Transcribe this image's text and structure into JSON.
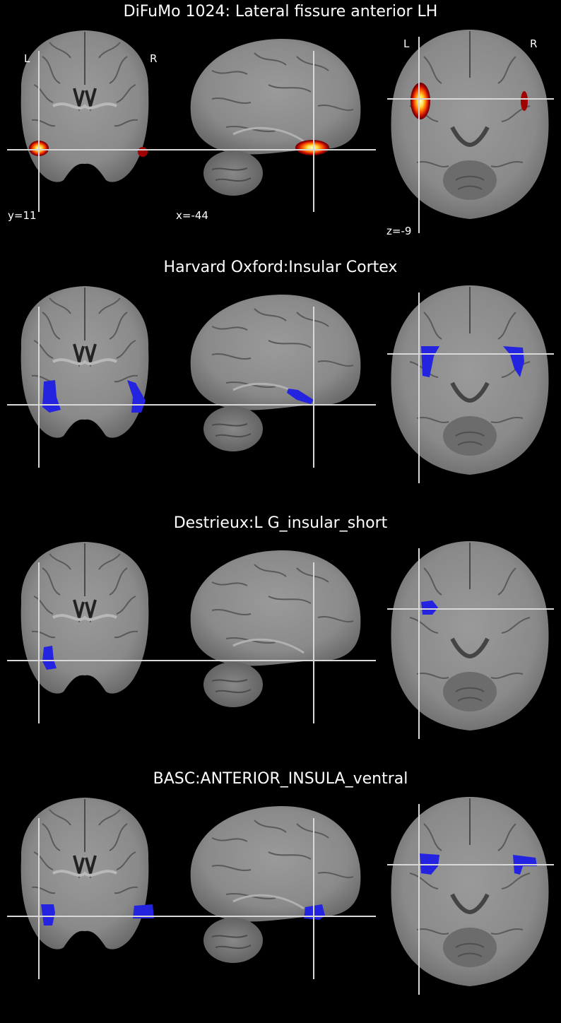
{
  "panels": [
    {
      "title": "DiFuMo 1024: Lateral fissure anterior LH",
      "overlay": "hot",
      "orientation_labels": {
        "left": "L",
        "right": "R"
      },
      "coords": {
        "coronal": "y=11",
        "sagittal": "x=-44",
        "axial": "z=-9"
      },
      "highlight_color": "#f5f5a0"
    },
    {
      "title": "Harvard Oxford:Insular Cortex",
      "overlay": "blue",
      "highlight_color": "#2222dd"
    },
    {
      "title": "Destrieux:L G_insular_short",
      "overlay": "blue",
      "highlight_color": "#2222dd"
    },
    {
      "title": "BASC:ANTERIOR_INSULA_ventral",
      "overlay": "blue",
      "highlight_color": "#2222dd"
    }
  ],
  "colors": {
    "background": "#000000",
    "brain": "#8a8a8a",
    "crosshair": "#d8d8d8",
    "overlay_blue": "#2424e0",
    "overlay_hot_outer": "#8b0000",
    "overlay_hot_mid": "#ff3300",
    "overlay_hot_inner": "#fff8a0"
  }
}
